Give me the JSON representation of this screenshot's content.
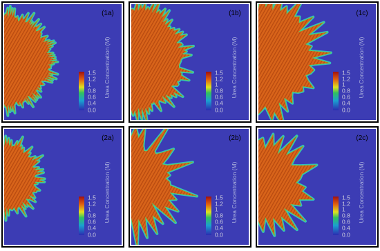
{
  "panels": [
    {
      "label": "(1a)",
      "colorbar_title": "Urea Concentration (M)",
      "ticks": [
        "1.5",
        "1.2",
        "1",
        "0.8",
        "0.6",
        "0.4",
        "0.0"
      ]
    },
    {
      "label": "(1b)",
      "colorbar_title": "Urea Concentration (M)",
      "ticks": [
        "1.5",
        "1.2",
        "1",
        "0.8",
        "0.6",
        "0.4",
        "0.0"
      ]
    },
    {
      "label": "(1c)",
      "colorbar_title": "Urea Concentration (M)",
      "ticks": [
        "1.5",
        "1.2",
        "1",
        "0.8",
        "0.6",
        "0.4",
        "0.0"
      ]
    },
    {
      "label": "(2a)",
      "colorbar_title": "Urea Concentration (M)",
      "ticks": [
        "1.5",
        "1.2",
        "1",
        "0.8",
        "0.6",
        "0.4",
        "0.0"
      ]
    },
    {
      "label": "(2b)",
      "colorbar_title": "Urea Concentration (M)",
      "ticks": [
        "1.5",
        "1.2",
        "1",
        "0.8",
        "0.6",
        "0.4",
        "0.0"
      ]
    },
    {
      "label": "(2c)",
      "colorbar_title": "Urea Concentration (M)",
      "ticks": [
        "1.5",
        "1.2",
        "1",
        "0.8",
        "0.6",
        "0.4",
        "0.0"
      ]
    }
  ]
}
